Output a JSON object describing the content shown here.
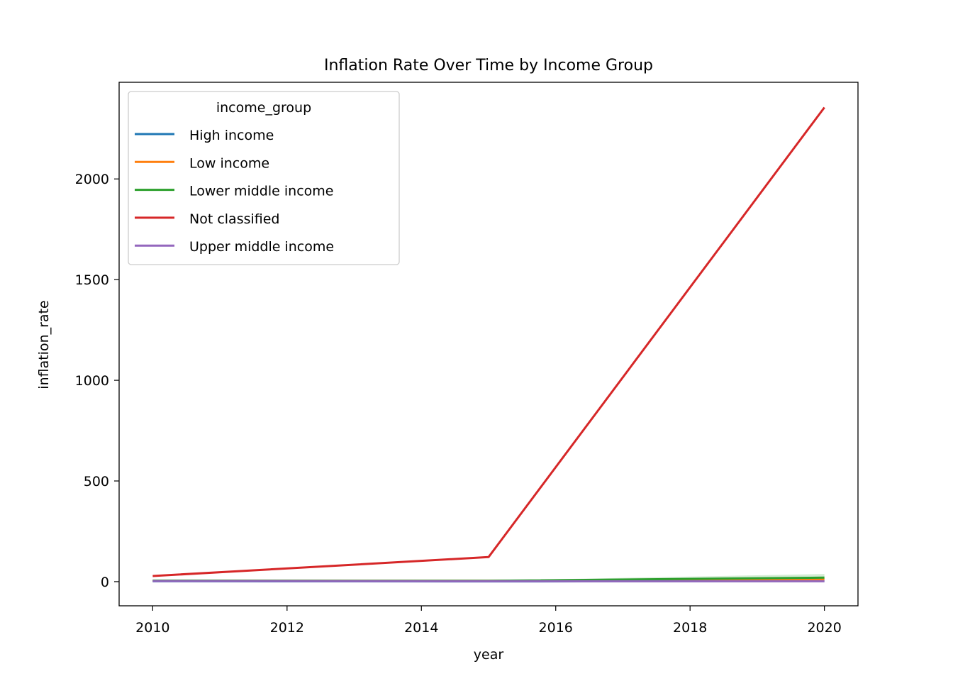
{
  "chart_data": {
    "type": "line",
    "title": "Inflation Rate Over Time by Income Group",
    "xlabel": "year",
    "ylabel": "inflation_rate",
    "xlim": [
      2009.5,
      2020.5
    ],
    "ylim": [
      -120,
      2480
    ],
    "x_ticks": [
      2010,
      2012,
      2014,
      2016,
      2018,
      2020
    ],
    "y_ticks": [
      0,
      500,
      1000,
      1500,
      2000
    ],
    "x": [
      2010,
      2015,
      2020
    ],
    "grid": false,
    "legend": {
      "title": "income_group",
      "placement": "top-left"
    },
    "series": [
      {
        "name": "High income",
        "color": "#1f77b4",
        "values": [
          2,
          1,
          3
        ]
      },
      {
        "name": "Low income",
        "color": "#ff7f0e",
        "values": [
          5,
          4,
          12
        ]
      },
      {
        "name": "Lower middle income",
        "color": "#2ca02c",
        "values": [
          5,
          4,
          20
        ],
        "band": {
          "lower": [
            4,
            3,
            5
          ],
          "upper": [
            7,
            6,
            38
          ]
        }
      },
      {
        "name": "Not classified",
        "color": "#d62728",
        "values": [
          28,
          122,
          2355
        ]
      },
      {
        "name": "Upper middle income",
        "color": "#9467bd",
        "values": [
          3,
          2,
          2
        ]
      }
    ]
  }
}
